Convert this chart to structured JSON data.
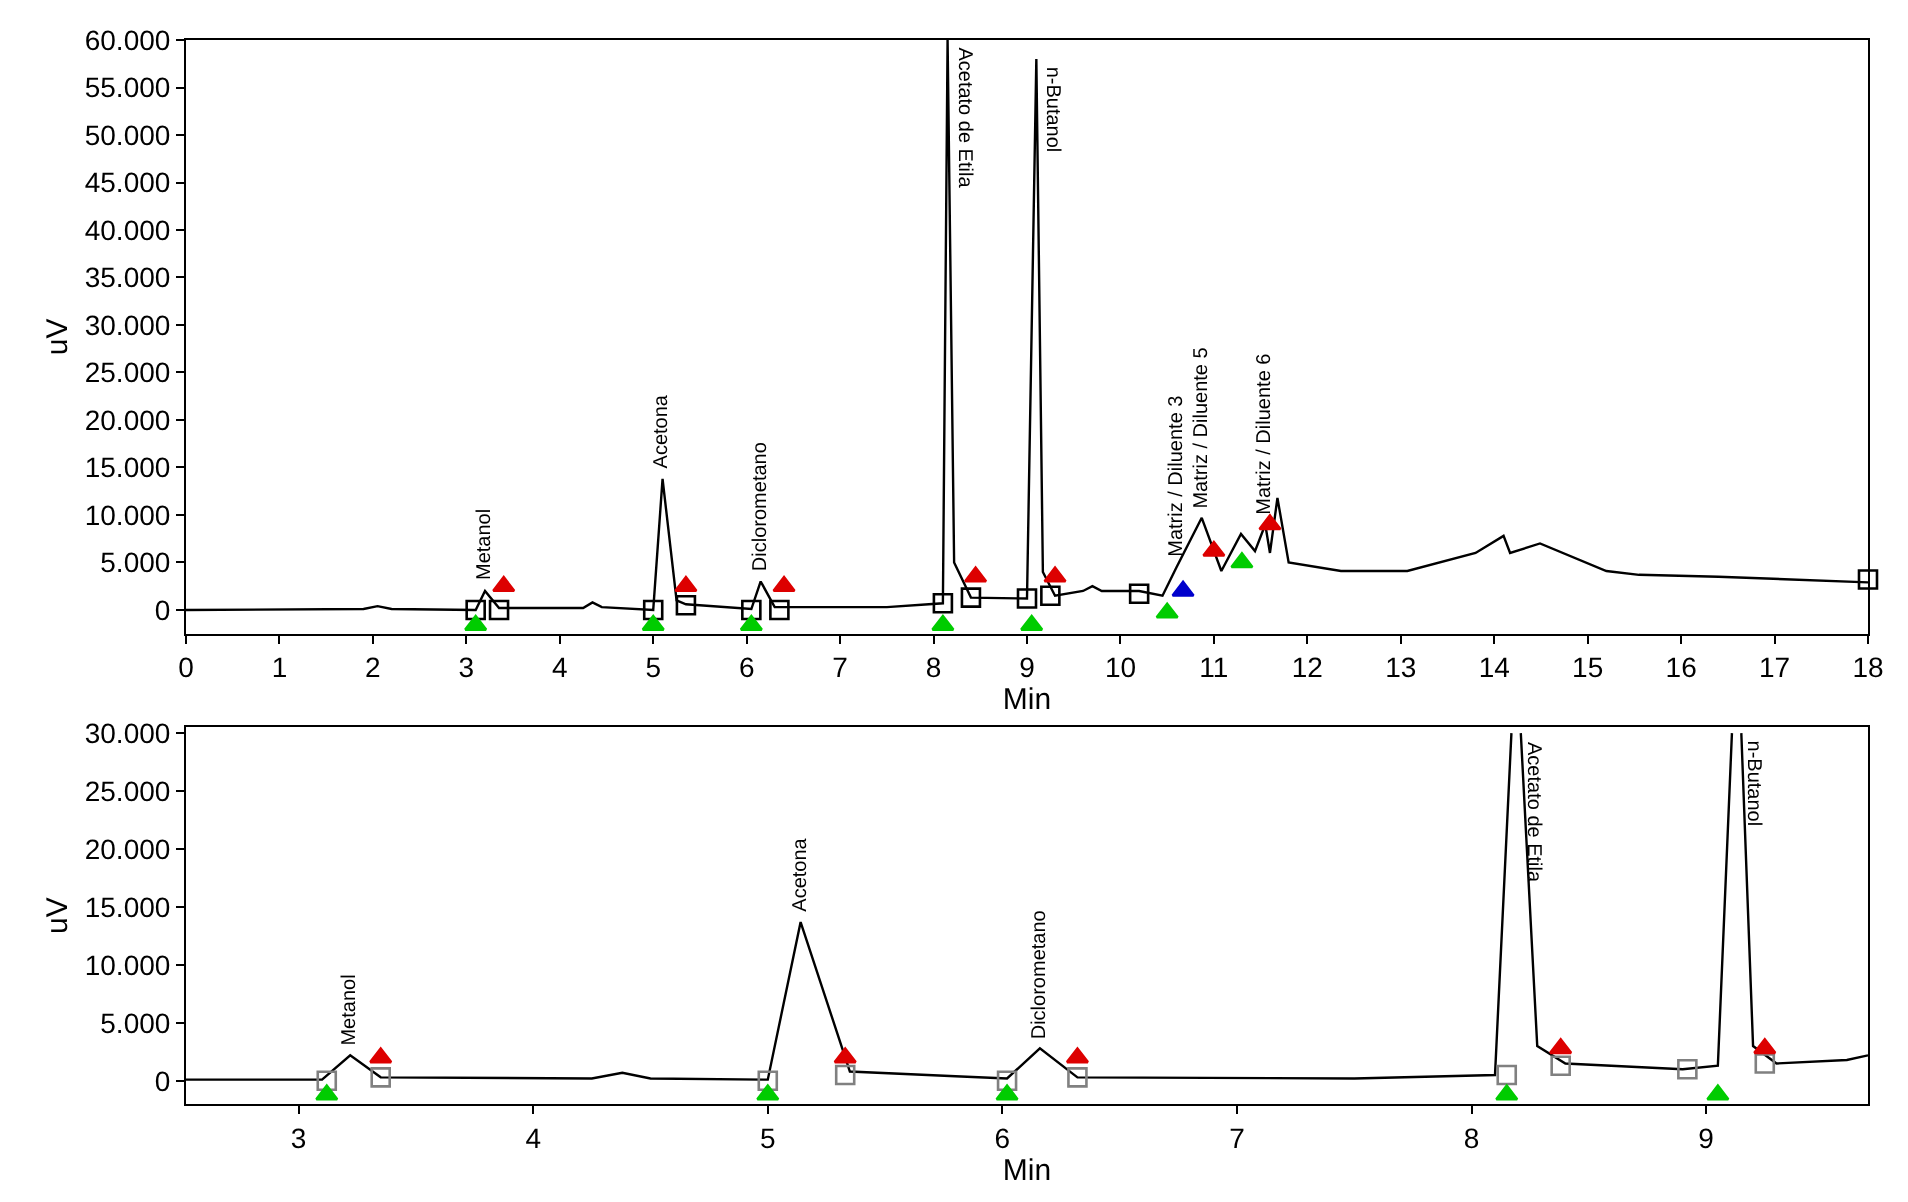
{
  "chart_data": [
    {
      "type": "line",
      "xlabel": "Min",
      "ylabel": "uV",
      "xlim": [
        0,
        18
      ],
      "xticks": [
        0,
        1,
        2,
        3,
        4,
        5,
        6,
        7,
        8,
        9,
        10,
        11,
        12,
        13,
        14,
        15,
        16,
        17,
        18
      ],
      "ylim": [
        -2500,
        60000
      ],
      "yticks": [
        0,
        {
          "value": 5000,
          "label": "5.000"
        },
        {
          "value": 10000,
          "label": "10.000"
        },
        {
          "value": 15000,
          "label": "15.000"
        },
        {
          "value": 20000,
          "label": "20.000"
        },
        {
          "value": 25000,
          "label": "25.000"
        },
        {
          "value": 30000,
          "label": "30.000"
        },
        {
          "value": 35000,
          "label": "35.000"
        },
        {
          "value": 40000,
          "label": "40.000"
        },
        {
          "value": 45000,
          "label": "45.000"
        },
        {
          "value": 50000,
          "label": "50.000"
        },
        {
          "value": 55000,
          "label": "55.000"
        },
        {
          "value": 60000,
          "label": "60.000"
        }
      ],
      "series": [
        {
          "color": "#000000",
          "marker": "none",
          "x": [
            0,
            1.9,
            2.05,
            2.2,
            3.1,
            3.2,
            3.35,
            4.25,
            4.35,
            4.45,
            5.0,
            5.1,
            5.25,
            5.35,
            6.05,
            6.15,
            6.3,
            7.5,
            8.1,
            8.15,
            8.22,
            8.4,
            9.0,
            9.1,
            9.17,
            9.3,
            9.6,
            9.7,
            9.8,
            10.2,
            10.45,
            10.6,
            10.87,
            11.08,
            11.29,
            11.44,
            11.55,
            11.6,
            11.68,
            11.8,
            12.36,
            13.07,
            13.8,
            14.1,
            14.17,
            14.49,
            15.2,
            15.55,
            16.4,
            18
          ],
          "values": [
            0,
            100,
            400,
            100,
            0,
            2000,
            200,
            200,
            800,
            300,
            0,
            13800,
            1000,
            600,
            100,
            3000,
            300,
            300,
            700,
            60000,
            5000,
            1300,
            1200,
            58000,
            4000,
            1500,
            2000,
            2500,
            2000,
            2000,
            1500,
            4500,
            9700,
            4100,
            8000,
            6200,
            9000,
            6000,
            11800,
            5000,
            4100,
            4100,
            6000,
            7800,
            6000,
            7000,
            4100,
            3700,
            3500,
            2900
          ]
        },
        {
          "type": "scatter",
          "color": "#000000",
          "marker": "square",
          "x": [
            3.1,
            3.35,
            5.0,
            5.35,
            6.05,
            6.35,
            8.1,
            8.4,
            9.0,
            9.25,
            10.2,
            18.0
          ],
          "values": [
            0,
            0,
            0,
            500,
            0,
            0,
            700,
            1300,
            1200,
            1500,
            1700,
            3200
          ]
        },
        {
          "type": "scatter",
          "color": "#00cc00",
          "marker": "triangle",
          "x": [
            3.1,
            5.0,
            6.05,
            8.1,
            9.05,
            10.5,
            11.3
          ],
          "values": [
            -1600,
            -1600,
            -1600,
            -1600,
            -1600,
            -300,
            5000
          ]
        },
        {
          "type": "scatter",
          "color": "#dd0000",
          "marker": "triangle",
          "x": [
            3.4,
            5.35,
            6.4,
            8.45,
            9.3,
            11.0,
            11.6
          ],
          "values": [
            2500,
            2500,
            2500,
            3500,
            3500,
            6200,
            9000
          ]
        },
        {
          "type": "scatter",
          "color": "#0000cc",
          "marker": "triangle",
          "x": [
            10.67
          ],
          "values": [
            2000
          ]
        }
      ],
      "annotations": [
        {
          "text": "Metanol",
          "x": 3.2,
          "y": 2000
        },
        {
          "text": "Acetona",
          "x": 5.1,
          "y": 13800
        },
        {
          "text": "Diclorometano",
          "x": 6.15,
          "y": 3000
        },
        {
          "text": "Acetato de Etila",
          "x": 8.15,
          "y": 60000
        },
        {
          "text": "n-Butanol",
          "x": 9.1,
          "y": 58000
        },
        {
          "text": "Matriz / Diluente 3",
          "x": 10.6,
          "y": 4500
        },
        {
          "text": "Matriz / Diluente 5",
          "x": 10.87,
          "y": 9700
        },
        {
          "text": "Matriz / Diluente 6",
          "x": 11.55,
          "y": 9000
        }
      ]
    },
    {
      "type": "line",
      "xlabel": "Min",
      "ylabel": "uV",
      "xlim": [
        2.52,
        9.69
      ],
      "xticks": [
        3,
        4,
        5,
        6,
        7,
        8,
        9
      ],
      "ylim": [
        -2000,
        30500
      ],
      "yticks": [
        0,
        {
          "value": 5000,
          "label": "5.000"
        },
        {
          "value": 10000,
          "label": "10.000"
        },
        {
          "value": 15000,
          "label": "15.000"
        },
        {
          "value": 20000,
          "label": "20.000"
        },
        {
          "value": 25000,
          "label": "25.000"
        },
        {
          "value": 30000,
          "label": "30.000"
        }
      ],
      "series": [
        {
          "color": "#000000",
          "marker": "none",
          "x": [
            2.52,
            3.1,
            3.22,
            3.35,
            4.25,
            4.38,
            4.5,
            5.0,
            5.14,
            5.35,
            5.8,
            6.02,
            6.16,
            6.32,
            7.5,
            8.1,
            8.17,
            8.19,
            8.21,
            8.28,
            8.4,
            8.9,
            9.05,
            9.11,
            9.13,
            9.15,
            9.2,
            9.3,
            9.6,
            9.69
          ],
          "values": [
            100,
            100,
            2200,
            300,
            200,
            700,
            200,
            100,
            13700,
            800,
            400,
            200,
            2800,
            300,
            200,
            500,
            30000,
            null,
            30000,
            3000,
            1500,
            1000,
            1300,
            30000,
            null,
            30000,
            3000,
            1500,
            1800,
            2200
          ]
        },
        {
          "type": "scatter",
          "color": "#808080",
          "marker": "square",
          "x": [
            3.12,
            3.35,
            5.0,
            5.33,
            6.02,
            6.32,
            8.15,
            8.38,
            8.92,
            9.25
          ],
          "values": [
            0,
            300,
            0,
            500,
            0,
            300,
            500,
            1300,
            1000,
            1500
          ]
        },
        {
          "type": "scatter",
          "color": "#00cc00",
          "marker": "triangle",
          "x": [
            3.12,
            5.0,
            6.02,
            8.15,
            9.05
          ],
          "values": [
            -1200,
            -1200,
            -1200,
            -1200,
            -1200
          ]
        },
        {
          "type": "scatter",
          "color": "#dd0000",
          "marker": "triangle",
          "x": [
            3.35,
            5.33,
            6.32,
            8.38,
            9.25
          ],
          "values": [
            2000,
            2000,
            2000,
            2800,
            2800
          ]
        }
      ],
      "annotations": [
        {
          "text": "Metanol",
          "x": 3.22,
          "y": 2200
        },
        {
          "text": "Acetona",
          "x": 5.14,
          "y": 13700
        },
        {
          "text": "Diclorometano",
          "x": 6.16,
          "y": 2800
        },
        {
          "text": "Acetato de Etila",
          "x": 8.19,
          "y": 30000
        },
        {
          "text": "n-Butanol",
          "x": 9.13,
          "y": 30000
        }
      ]
    }
  ]
}
